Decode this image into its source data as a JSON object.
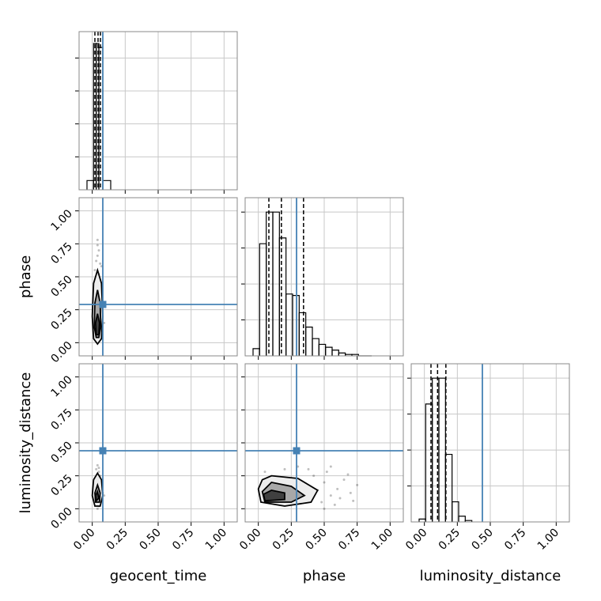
{
  "chart_data": [
    {
      "type": "histogram",
      "bins": [
        -0.04,
        0.01,
        0.03,
        0.05,
        0.08,
        0.14
      ],
      "values": [
        7,
        111,
        111,
        108,
        7
      ],
      "quantiles": [
        0.02,
        0.044,
        0.062
      ],
      "truth": 0.08,
      "color": "#000000",
      "truth_color": "#4682b4",
      "xlim": [
        -0.1,
        1.1
      ],
      "xticks": [
        0,
        0.25,
        0.5,
        0.75,
        1
      ],
      "ylim": [
        0,
        120
      ],
      "yticks": [
        25,
        50,
        75,
        100
      ],
      "grid": true
    },
    {
      "type": "scatter",
      "ylabel": "phase",
      "x": [
        0.03,
        0.05,
        0.02,
        0.06,
        0.04,
        0.07,
        0.03,
        0.05,
        0.08,
        0.02,
        0.04,
        0.06,
        0.03,
        0.05,
        0.09,
        0.04,
        0.06,
        0.03,
        0.05,
        0.07
      ],
      "y": [
        0.62,
        0.7,
        0.55,
        0.48,
        0.78,
        0.58,
        0.35,
        0.42,
        0.3,
        0.2,
        0.66,
        0.25,
        0.1,
        0.05,
        0.15,
        0.74,
        0.6,
        0.45,
        0.52,
        0.38
      ],
      "contours": [
        {
          "x": [
            0.04,
            0.07,
            0.08,
            0.07,
            0.04,
            0.01,
            0.0,
            0.01
          ],
          "y": [
            0.55,
            0.45,
            0.2,
            0.03,
            -0.01,
            0.03,
            0.2,
            0.45
          ],
          "fill": "#ededed"
        },
        {
          "x": [
            0.04,
            0.06,
            0.065,
            0.05,
            0.03,
            0.015,
            0.02
          ],
          "y": [
            0.4,
            0.3,
            0.12,
            0.04,
            0.04,
            0.12,
            0.3
          ],
          "fill": "#a8a8a8"
        },
        {
          "x": [
            0.04,
            0.055,
            0.05,
            0.03,
            0.025
          ],
          "y": [
            0.22,
            0.15,
            0.06,
            0.06,
            0.15
          ],
          "fill": "#404040"
        }
      ],
      "truth_x": 0.08,
      "truth_y": 0.29,
      "truth_color": "#4682b4",
      "point_color": "#000000",
      "xlim": [
        -0.1,
        1.1
      ],
      "xticks": [
        0,
        0.25,
        0.5,
        0.75,
        1
      ],
      "ylim": [
        -0.1,
        1.1
      ],
      "yticks": [
        {
          "value": 0,
          "label": "0.00"
        },
        {
          "value": 0.25,
          "label": "0.25"
        },
        {
          "value": 0.5,
          "label": "0.50"
        },
        {
          "value": 0.75,
          "label": "0.75"
        },
        {
          "value": 1,
          "label": "1.00"
        }
      ],
      "grid": true
    },
    {
      "type": "histogram",
      "bins": [
        -0.04,
        0.01,
        0.06,
        0.11,
        0.16,
        0.21,
        0.26,
        0.31,
        0.36,
        0.41,
        0.46,
        0.51,
        0.56,
        0.61,
        0.66,
        0.71,
        0.76,
        0.81,
        0.86
      ],
      "values": [
        0.05,
        0.78,
        1.0,
        1.0,
        0.82,
        0.43,
        0.42,
        0.3,
        0.2,
        0.12,
        0.08,
        0.06,
        0.04,
        0.02,
        0.01,
        0.01,
        0,
        0
      ],
      "quantiles": [
        0.08,
        0.175,
        0.343
      ],
      "truth": 0.29,
      "color": "#000000",
      "truth_color": "#4682b4",
      "xlim": [
        -0.1,
        1.1
      ],
      "xticks": [
        0,
        0.25,
        0.5,
        0.75,
        1
      ],
      "ylim": [
        0,
        1.1
      ],
      "yticks": [
        0.25,
        0.5,
        0.75,
        1
      ],
      "grid": true
    },
    {
      "type": "scatter",
      "xlabel": "geocent_time",
      "ylabel": "luminosity_distance",
      "x": [
        0.03,
        0.05,
        0.02,
        0.06,
        0.04,
        0.07,
        0.03,
        0.05,
        0.08,
        0.02,
        0.04,
        0.06,
        0.03,
        0.05,
        0.09,
        0.04
      ],
      "y": [
        0.3,
        0.28,
        0.22,
        0.25,
        0.33,
        0.18,
        0.05,
        0.02,
        0.12,
        0.15,
        0.26,
        0.08,
        0.2,
        0.31,
        0.1,
        0.0
      ],
      "contours": [
        {
          "x": [
            0.04,
            0.07,
            0.08,
            0.06,
            0.02,
            0.0,
            0.01
          ],
          "y": [
            0.27,
            0.22,
            0.1,
            0.02,
            0.02,
            0.1,
            0.22
          ],
          "fill": "#ededed"
        },
        {
          "x": [
            0.04,
            0.06,
            0.055,
            0.025,
            0.02
          ],
          "y": [
            0.18,
            0.12,
            0.05,
            0.05,
            0.12
          ],
          "fill": "#a8a8a8"
        },
        {
          "x": [
            0.04,
            0.05,
            0.03,
            0.025
          ],
          "y": [
            0.13,
            0.08,
            0.06,
            0.1
          ],
          "fill": "#404040"
        }
      ],
      "truth_x": 0.08,
      "truth_y": 0.44,
      "truth_color": "#4682b4",
      "point_color": "#000000",
      "xlim": [
        -0.1,
        1.1
      ],
      "xticks": [
        {
          "value": 0,
          "label": "0.00"
        },
        {
          "value": 0.25,
          "label": "0.25"
        },
        {
          "value": 0.5,
          "label": "0.50"
        },
        {
          "value": 0.75,
          "label": "0.75"
        },
        {
          "value": 1,
          "label": "1.00"
        }
      ],
      "ylim": [
        -0.1,
        1.1
      ],
      "yticks": [
        {
          "value": 0,
          "label": "0.00"
        },
        {
          "value": 0.25,
          "label": "0.25"
        },
        {
          "value": 0.5,
          "label": "0.50"
        },
        {
          "value": 0.75,
          "label": "0.75"
        },
        {
          "value": 1,
          "label": "1.00"
        }
      ],
      "grid": true
    },
    {
      "type": "scatter",
      "xlabel": "phase",
      "x": [
        0.5,
        0.55,
        0.6,
        0.48,
        0.65,
        0.7,
        0.52,
        0.42,
        0.58,
        0.75,
        0.38,
        0.62,
        0.45,
        0.68,
        0.3,
        0.2,
        0.55,
        0.72,
        0.5,
        0.05
      ],
      "y": [
        0.2,
        0.1,
        0.15,
        0.05,
        0.22,
        0.12,
        0.28,
        0.25,
        0.03,
        0.18,
        0.3,
        0.08,
        0.14,
        0.26,
        0.32,
        0.3,
        0.32,
        0.06,
        0.0,
        0.28
      ],
      "contours": [
        {
          "x": [
            0.1,
            0.3,
            0.45,
            0.4,
            0.2,
            0.02,
            0.0,
            0.03
          ],
          "y": [
            0.25,
            0.23,
            0.14,
            0.05,
            0.02,
            0.05,
            0.15,
            0.22
          ],
          "fill": "#ededed"
        },
        {
          "x": [
            0.1,
            0.25,
            0.35,
            0.25,
            0.05,
            0.03
          ],
          "y": [
            0.2,
            0.17,
            0.1,
            0.05,
            0.05,
            0.13
          ],
          "fill": "#a8a8a8"
        },
        {
          "x": [
            0.1,
            0.2,
            0.2,
            0.05,
            0.04
          ],
          "y": [
            0.14,
            0.12,
            0.07,
            0.06,
            0.11
          ],
          "fill": "#404040"
        }
      ],
      "truth_x": 0.29,
      "truth_y": 0.44,
      "truth_color": "#4682b4",
      "point_color": "#000000",
      "xlim": [
        -0.1,
        1.1
      ],
      "xticks": [
        {
          "value": 0,
          "label": "0.00"
        },
        {
          "value": 0.25,
          "label": "0.25"
        },
        {
          "value": 0.5,
          "label": "0.50"
        },
        {
          "value": 0.75,
          "label": "0.75"
        },
        {
          "value": 1,
          "label": "1.00"
        }
      ],
      "ylim": [
        -0.1,
        1.1
      ],
      "yticks": [
        0,
        0.25,
        0.5,
        0.75,
        1
      ],
      "grid": true
    },
    {
      "type": "histogram",
      "xlabel": "luminosity_distance",
      "bins": [
        -0.04,
        0.01,
        0.06,
        0.11,
        0.16,
        0.21,
        0.26,
        0.31,
        0.36
      ],
      "values": [
        0.02,
        0.82,
        1.0,
        1.0,
        0.47,
        0.14,
        0.04,
        0.01
      ],
      "quantiles": [
        0.05,
        0.1,
        0.163
      ],
      "truth": 0.44,
      "color": "#000000",
      "truth_color": "#4682b4",
      "xlim": [
        -0.1,
        1.1
      ],
      "xticks": [
        {
          "value": 0,
          "label": "0.00"
        },
        {
          "value": 0.25,
          "label": "0.25"
        },
        {
          "value": 0.5,
          "label": "0.50"
        },
        {
          "value": 0.75,
          "label": "0.75"
        },
        {
          "value": 1,
          "label": "1.00"
        }
      ],
      "ylim": [
        0,
        1.1
      ],
      "yticks": [
        0.25,
        0.5,
        0.75,
        1
      ],
      "grid": true
    }
  ]
}
